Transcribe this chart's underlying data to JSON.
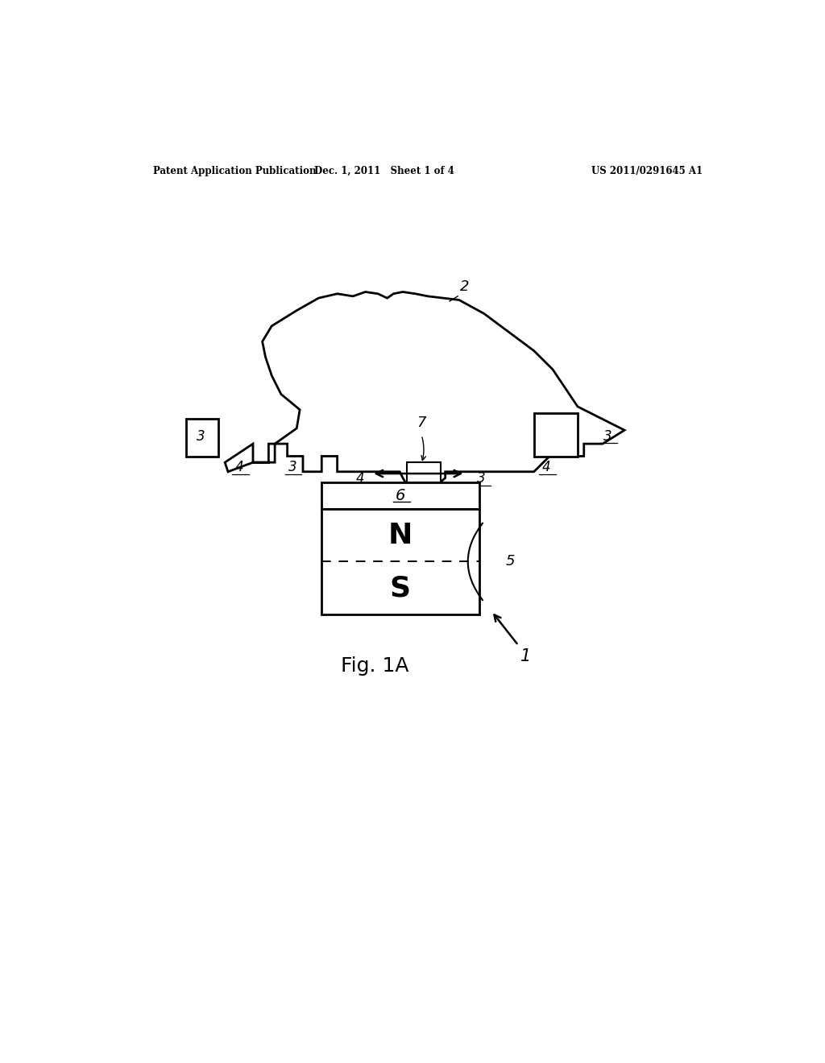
{
  "bg_color": "#ffffff",
  "header_left": "Patent Application Publication",
  "header_mid": "Dec. 1, 2011   Sheet 1 of 4",
  "header_right": "US 2011/0291645 A1",
  "fig_label": "Fig. 1A",
  "lw_main": 2.0,
  "lw_thin": 1.2
}
